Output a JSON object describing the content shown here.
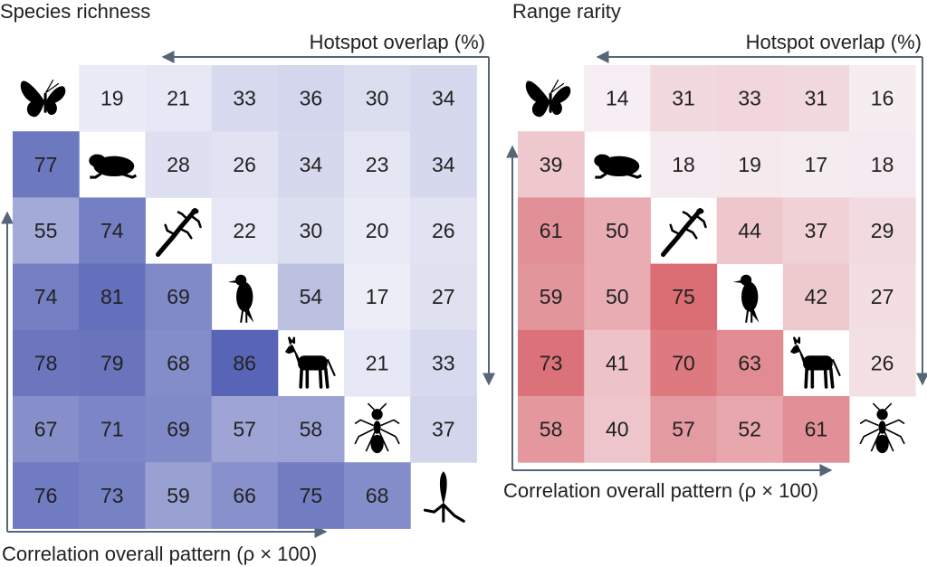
{
  "chart_data": [
    {
      "type": "heatmap",
      "title": "Species richness",
      "upper_label": "Hotspot overlap (%)",
      "lower_label": "Correlation overall pattern (ρ × 100)",
      "taxa_icons": [
        "butterfly-icon",
        "frog-icon",
        "lizard-icon",
        "bird-icon",
        "donkey-icon",
        "ant-icon",
        "plant-icon"
      ],
      "color": "#4a58b0",
      "grid": [
        [
          null,
          19,
          21,
          33,
          36,
          30,
          34
        ],
        [
          77,
          null,
          28,
          26,
          34,
          23,
          34
        ],
        [
          55,
          74,
          null,
          22,
          30,
          20,
          26
        ],
        [
          74,
          81,
          69,
          null,
          54,
          17,
          27
        ],
        [
          78,
          79,
          68,
          86,
          null,
          21,
          33
        ],
        [
          67,
          71,
          69,
          57,
          58,
          null,
          37
        ],
        [
          76,
          73,
          59,
          66,
          75,
          68,
          null
        ]
      ]
    },
    {
      "type": "heatmap",
      "title": "Range rarity",
      "upper_label": "Hotspot overlap (%)",
      "lower_label": "Correlation overall pattern (ρ × 100)",
      "taxa_icons": [
        "butterfly-icon",
        "frog-icon",
        "lizard-icon",
        "bird-icon",
        "donkey-icon",
        "ant-icon"
      ],
      "color": "#d2434b",
      "grid": [
        [
          null,
          14,
          31,
          33,
          31,
          16
        ],
        [
          39,
          null,
          18,
          19,
          17,
          18
        ],
        [
          61,
          50,
          null,
          44,
          37,
          29
        ],
        [
          59,
          50,
          75,
          null,
          42,
          27
        ],
        [
          73,
          41,
          70,
          63,
          null,
          26
        ],
        [
          58,
          40,
          57,
          52,
          61,
          null
        ]
      ]
    }
  ]
}
